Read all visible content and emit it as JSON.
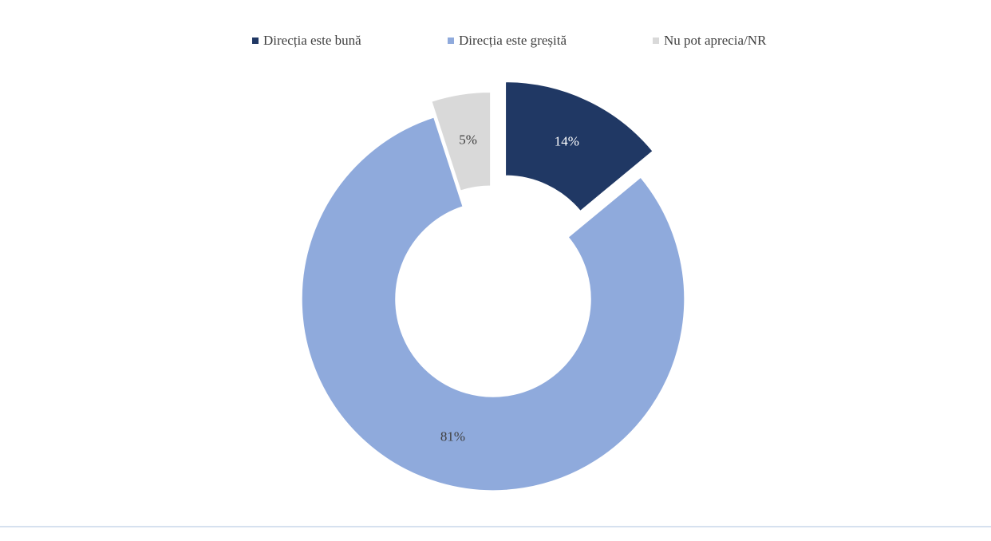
{
  "chart_data": {
    "type": "donut",
    "categories": [
      "Direcția este bună",
      "Direcția este greșită",
      "Nu pot aprecia/NR"
    ],
    "values": [
      14,
      81,
      5
    ],
    "value_labels": [
      "14%",
      "81%",
      "5%"
    ],
    "colors": [
      "#203864",
      "#8faadc",
      "#d9d9d9"
    ],
    "legend": "top"
  }
}
